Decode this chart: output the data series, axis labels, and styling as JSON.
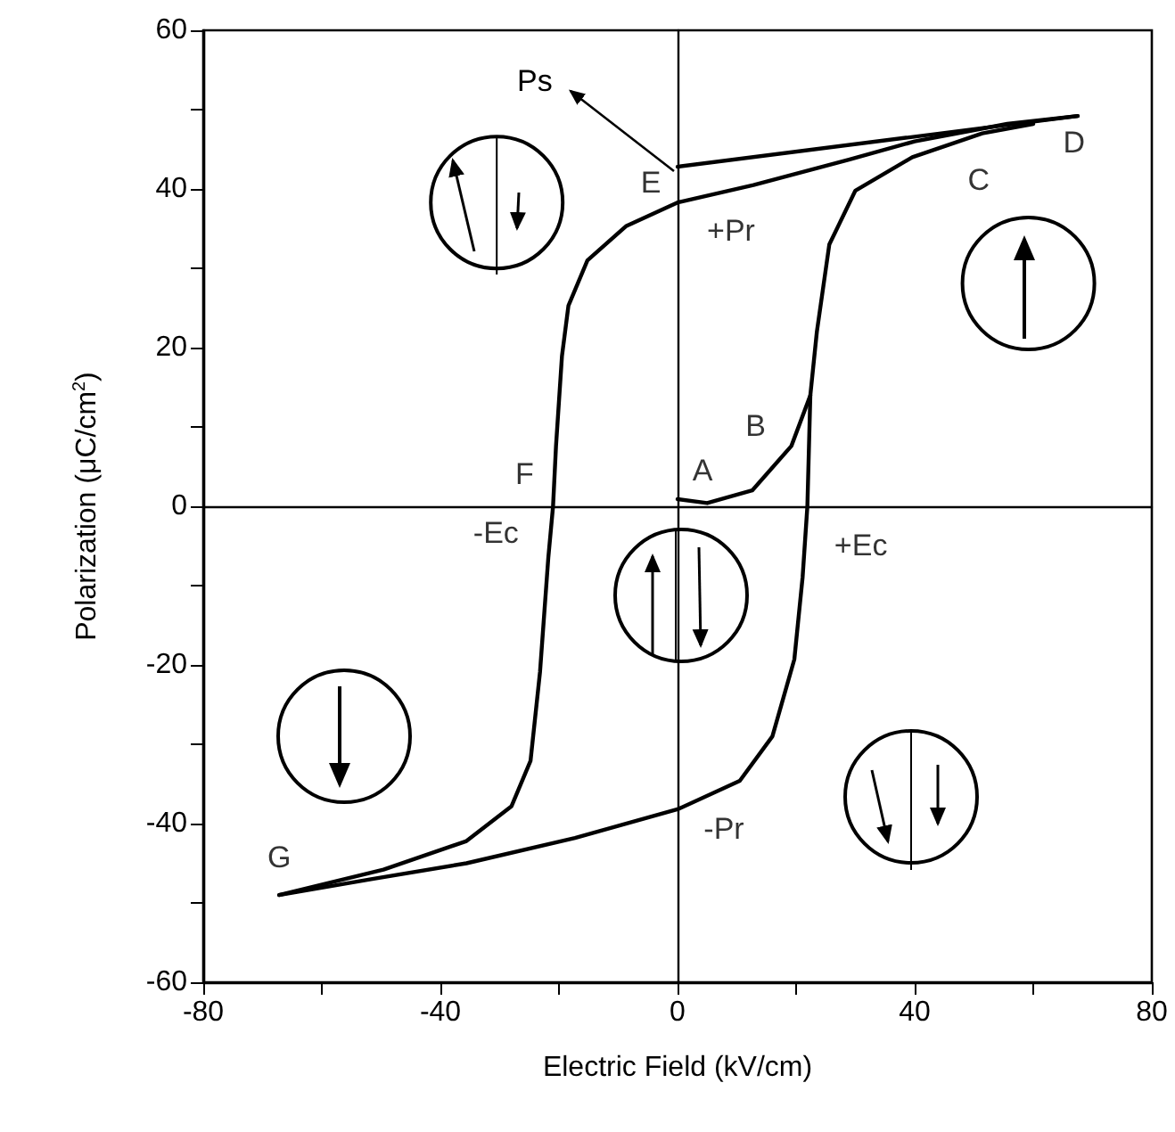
{
  "chart_data": {
    "type": "line",
    "xlabel": "Electric Field (kV/cm)",
    "ylabel": "Polarization (μC/cm$^{2}$)",
    "xlim": [
      -80,
      80
    ],
    "xticks": [
      -80,
      {
        "value": -60,
        "label": null
      },
      -40,
      {
        "value": -20,
        "label": null
      },
      0,
      {
        "value": 20,
        "label": null
      },
      40,
      {
        "value": 60,
        "label": null
      },
      80
    ],
    "ylim": [
      -60,
      60
    ],
    "yticks": [
      -60,
      {
        "value": -50,
        "label": null
      },
      -40,
      {
        "value": -30,
        "label": null
      },
      -20,
      {
        "value": -10,
        "label": null
      },
      0,
      {
        "value": 10,
        "label": null
      },
      20,
      {
        "value": 30,
        "label": null
      },
      40,
      {
        "value": 50,
        "label": null
      },
      60
    ],
    "marker": "none",
    "line_style": "solid",
    "series": [
      {
        "color": "#000000",
        "x": [
          0,
          5,
          12.6,
          19.2,
          22.4
        ],
        "values": [
          0.9,
          0.4,
          2,
          7.6,
          14
        ]
      },
      {
        "color": "#000000",
        "x": [
          67.5,
          55.6,
          40,
          28.9,
          12.8,
          0,
          -8.7,
          -15.2,
          -18.4,
          -19.5,
          -20.5,
          -21,
          -21.8,
          -23.2,
          -24.8,
          -28,
          -35.6,
          -49.6,
          -67.2
        ],
        "values": [
          49.2,
          48.2,
          46,
          43.7,
          40.5,
          38.3,
          35.3,
          31,
          25.3,
          18.9,
          7.6,
          0,
          -6.5,
          -20.9,
          -32.1,
          -37.8,
          -42.2,
          -45.8,
          -49
        ]
      },
      {
        "color": "#000000",
        "x": [
          -67.2,
          -51.7,
          -35.6,
          -17.3,
          0,
          10.5,
          16,
          19.7,
          21.1,
          21.9,
          22.4,
          23.5,
          25.6,
          30,
          39.6,
          51.4,
          60
        ],
        "values": [
          -49,
          -47,
          -45,
          -41.8,
          -38.2,
          -34.6,
          -29,
          -19.3,
          -8.9,
          0,
          14,
          22,
          33,
          39.8,
          44,
          47,
          48.2
        ]
      },
      {
        "color": "#000000",
        "x": [
          0,
          67.5
        ],
        "values": [
          42.8,
          49.2
        ]
      }
    ],
    "annotations": [
      "Ps",
      {
        "text": "A",
        "x": 0,
        "y": 0.9
      },
      {
        "text": "B",
        "x": 19.2,
        "y": 7.6
      },
      {
        "text": "C",
        "x": 51.4,
        "y": 47
      },
      {
        "text": "D",
        "x": 67.5,
        "y": 49.2
      },
      {
        "text": "E",
        "x": 0,
        "y": 42.8
      },
      {
        "text": "F",
        "x": -21,
        "y": 0
      },
      {
        "text": "G",
        "x": -67.2,
        "y": -49
      },
      {
        "text": "+Pr",
        "x": 0,
        "y": 38.3
      },
      {
        "text": "-Pr",
        "x": 0,
        "y": -38.2
      },
      {
        "text": "+Ec",
        "x": 21.9,
        "y": 0
      },
      {
        "text": "-Ec",
        "x": -21,
        "y": 0
      }
    ]
  }
}
